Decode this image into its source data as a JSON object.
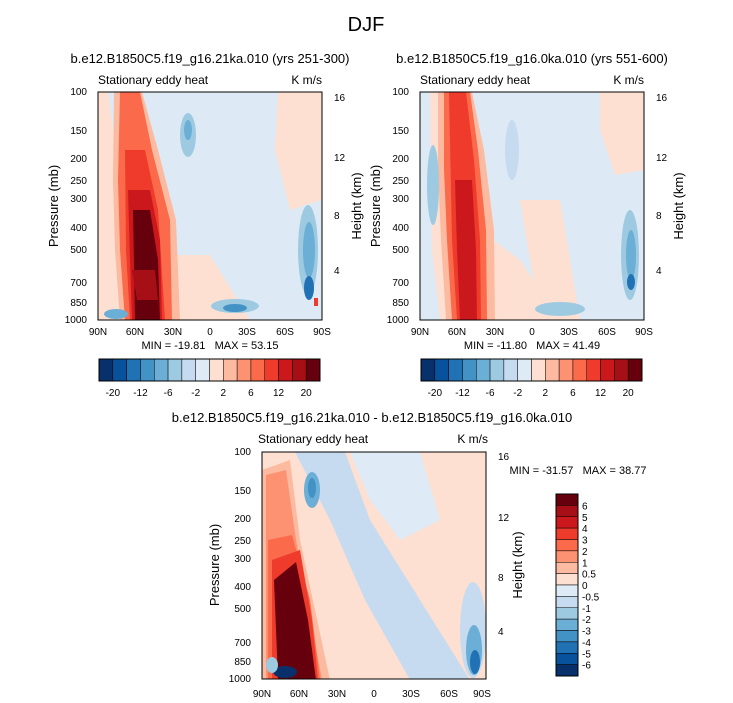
{
  "figure_title": "DJF",
  "chart_data": [
    {
      "type": "heatmap",
      "title": "b.e12.B1850C5.f19_g16.21ka.010 (yrs 251-300)",
      "left_string": "Stationary eddy heat",
      "right_string": "K m/s",
      "ylabel": "Pressure (mb)",
      "ylabel_right": "Height (km)",
      "x_ticks": [
        "90N",
        "60N",
        "30N",
        "0",
        "30S",
        "60S",
        "90S"
      ],
      "y_ticks": [
        "100",
        "150",
        "200",
        "250",
        "300",
        "400",
        "500",
        "700",
        "850",
        "1000"
      ],
      "y2_ticks": [
        "16",
        "12",
        "8",
        "4"
      ],
      "min": "-19.81",
      "max": "53.15",
      "stats_text": "MIN = -19.81   MAX = 53.15",
      "colorbar": {
        "orientation": "horizontal",
        "labels": [
          "-20",
          "-12",
          "-6",
          "-2",
          "2",
          "6",
          "12",
          "20"
        ]
      }
    },
    {
      "type": "heatmap",
      "title": "b.e12.B1850C5.f19_g16.0ka.010 (yrs 551-600)",
      "left_string": "Stationary eddy heat",
      "right_string": "K m/s",
      "ylabel": "Pressure (mb)",
      "ylabel_right": "Height (km)",
      "x_ticks": [
        "90N",
        "60N",
        "30N",
        "0",
        "30S",
        "60S",
        "90S"
      ],
      "y_ticks": [
        "100",
        "150",
        "200",
        "250",
        "300",
        "400",
        "500",
        "700",
        "850",
        "1000"
      ],
      "y2_ticks": [
        "16",
        "12",
        "8",
        "4"
      ],
      "min": "-11.80",
      "max": "41.49",
      "stats_text": "MIN = -11.80   MAX = 41.49",
      "colorbar": {
        "orientation": "horizontal",
        "labels": [
          "-20",
          "-12",
          "-6",
          "-2",
          "2",
          "6",
          "12",
          "20"
        ]
      }
    },
    {
      "type": "heatmap",
      "title": "b.e12.B1850C5.f19_g16.21ka.010 - b.e12.B1850C5.f19_g16.0ka.010",
      "left_string": "Stationary eddy heat",
      "right_string": "K m/s",
      "ylabel": "Pressure (mb)",
      "ylabel_right": "Height (km)",
      "x_ticks": [
        "90N",
        "60N",
        "30N",
        "0",
        "30S",
        "60S",
        "90S"
      ],
      "y_ticks": [
        "100",
        "150",
        "200",
        "250",
        "300",
        "400",
        "500",
        "700",
        "850",
        "1000"
      ],
      "y2_ticks": [
        "16",
        "12",
        "8",
        "4"
      ],
      "min": "-31.57",
      "max": "38.77",
      "stats_text": "MIN = -31.57   MAX = 38.77",
      "colorbar": {
        "orientation": "vertical",
        "labels": [
          "6",
          "5",
          "4",
          "3",
          "2",
          "1",
          "0.5",
          "0",
          "-0.5",
          "-1",
          "-2",
          "-3",
          "-4",
          "-5",
          "-6"
        ]
      }
    }
  ],
  "colors": {
    "palette": [
      "#08306b",
      "#08519c",
      "#2171b5",
      "#4292c6",
      "#6baed6",
      "#9ecae1",
      "#c6dbef",
      "#deebf7",
      "#fee0d2",
      "#fcbba1",
      "#fc9272",
      "#fb6a4a",
      "#ef3b2c",
      "#cb181d",
      "#a50f15",
      "#67000d"
    ],
    "diff_palette": [
      "#67000d",
      "#a50f15",
      "#cb181d",
      "#ef3b2c",
      "#fb6a4a",
      "#fc9272",
      "#fcbba1",
      "#fee0d2",
      "#deebf7",
      "#c6dbef",
      "#9ecae1",
      "#6baed6",
      "#4292c6",
      "#2171b5",
      "#08519c",
      "#08306b"
    ],
    "background_field": "#ddeaf6"
  }
}
